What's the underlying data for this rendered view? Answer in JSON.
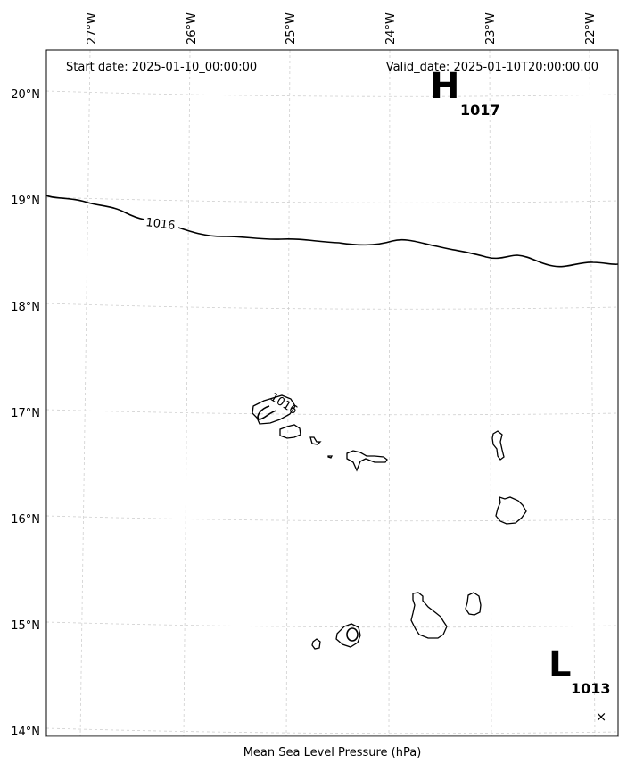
{
  "header": {
    "start_date": "Start date: 2025-01-10_00:00:00",
    "valid_date": "Valid_date: 2025-01-10T20:00:00.00"
  },
  "axes": {
    "lon_labels": [
      "27°W",
      "26°W",
      "25°W",
      "24°W",
      "23°W",
      "22°W"
    ],
    "lat_labels": [
      "20°N",
      "19°N",
      "18°N",
      "17°N",
      "16°N",
      "15°N",
      "14°N"
    ]
  },
  "pressure_centers": {
    "high": {
      "letter": "H",
      "value": "1017"
    },
    "low": {
      "letter": "L",
      "value": "1013"
    }
  },
  "contours": {
    "label_north": "1016",
    "label_island": "1016"
  },
  "marker": {
    "symbol": "×"
  },
  "caption": "Mean Sea Level Pressure (hPa)"
}
